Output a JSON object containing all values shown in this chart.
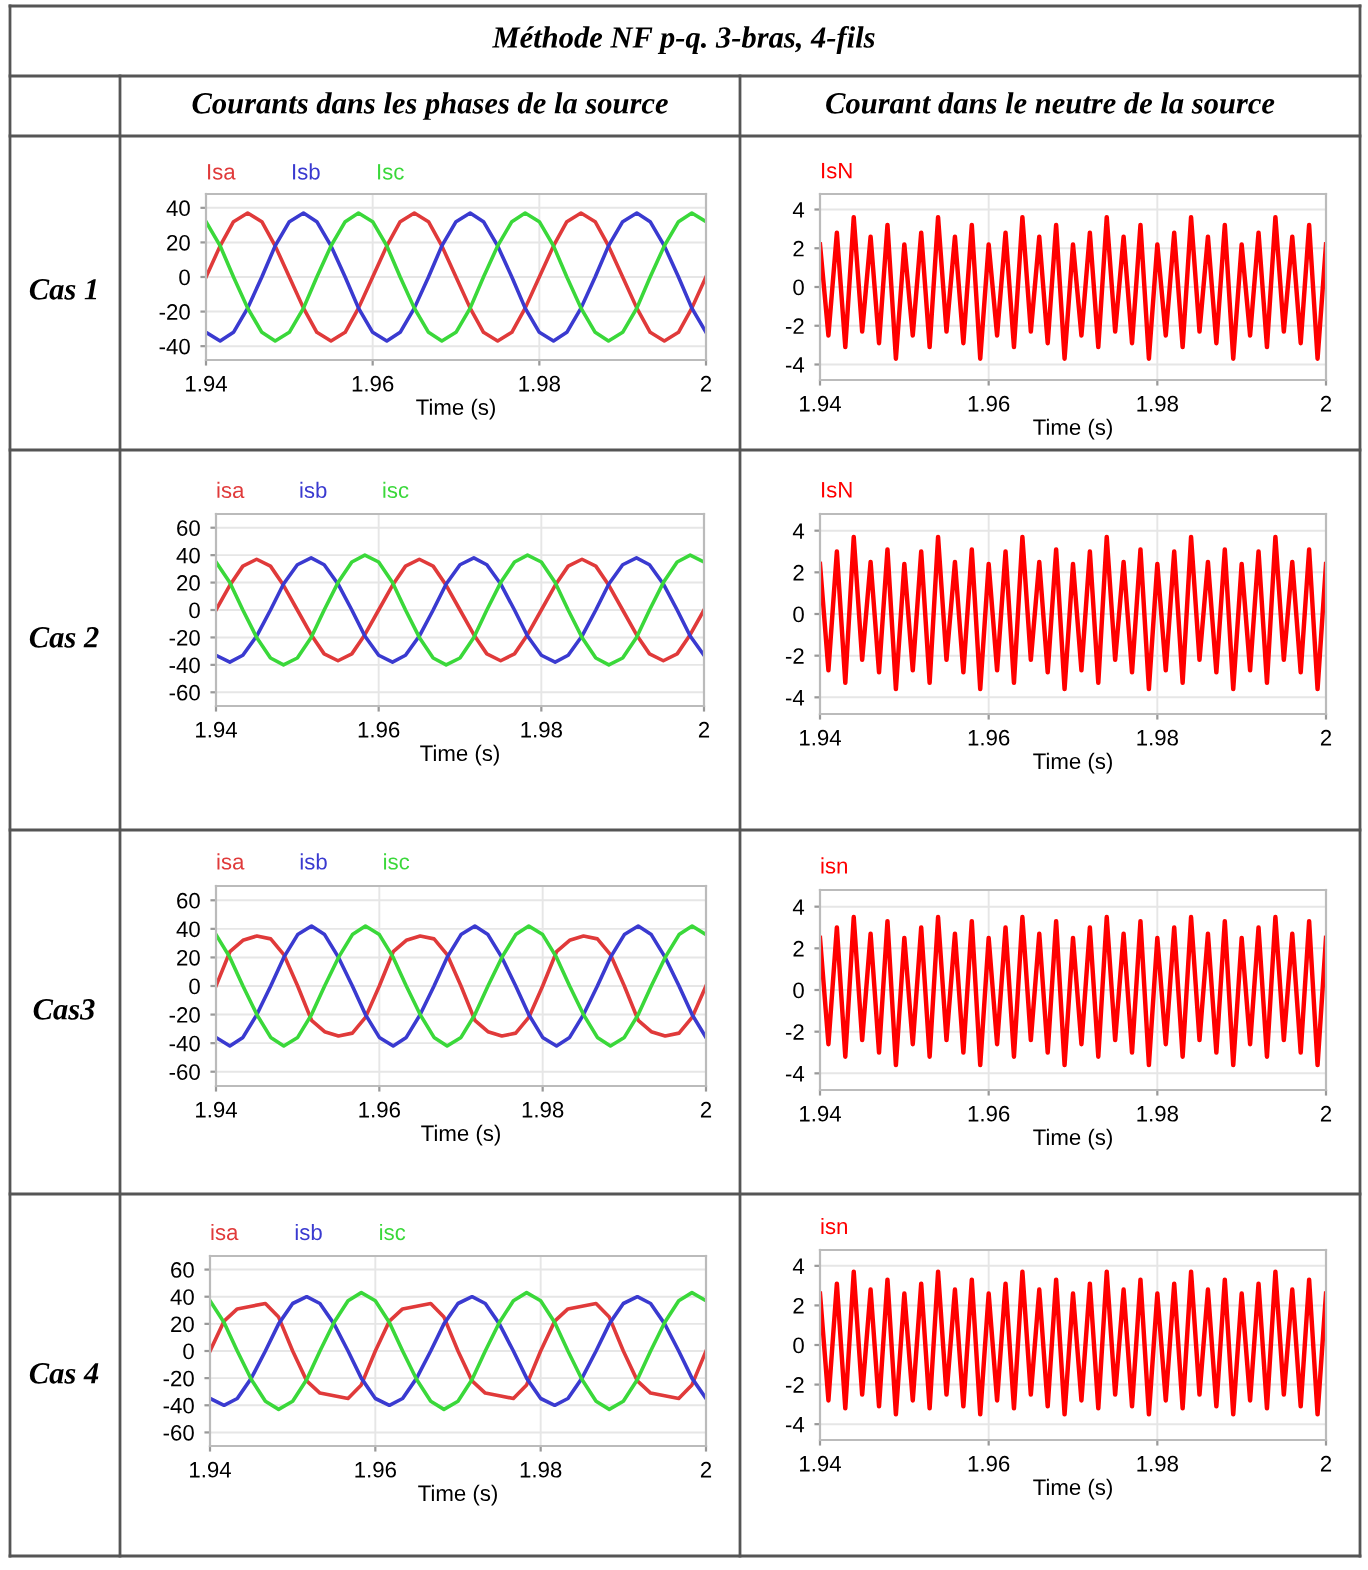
{
  "chart_data": [
    {
      "type": "line",
      "xlabel": "Time (s)",
      "xlim": [
        1.94,
        2
      ],
      "xticks": [
        1.94,
        1.96,
        1.98,
        2
      ],
      "ylim": [
        -48,
        48
      ],
      "yticks": [
        -40,
        -20,
        0,
        20,
        40
      ],
      "grid": true,
      "legend": "top",
      "line_style": "solid",
      "annotations": [
        "Méthode NF p-q. 3-bras, 4-fils",
        "Courants dans les phases de la source",
        "Cas 1"
      ],
      "x": [
        1.94,
        1.9417,
        1.9433,
        1.945,
        1.9467,
        1.9483,
        1.95,
        1.9517,
        1.9533,
        1.955,
        1.9567,
        1.9583,
        1.96,
        1.9617,
        1.9633,
        1.965,
        1.9667,
        1.9683,
        1.97,
        1.9717,
        1.9733,
        1.975,
        1.9767,
        1.9783,
        1.98,
        1.9817,
        1.9833,
        1.985,
        1.9867,
        1.9883,
        1.99,
        1.9917,
        1.9933,
        1.995,
        1.9967,
        1.9983,
        2
      ],
      "series": [
        {
          "name": "Isa",
          "color": "#e03a3a",
          "values": [
            0,
            18,
            32,
            37,
            32,
            18,
            0,
            -18,
            -32,
            -37,
            -32,
            -18,
            0,
            18,
            32,
            37,
            32,
            18,
            0,
            -18,
            -32,
            -37,
            -32,
            -18,
            0,
            18,
            32,
            37,
            32,
            18,
            0,
            -18,
            -32,
            -37,
            -32,
            -18,
            0
          ]
        },
        {
          "name": "Isb",
          "color": "#3a3ad0",
          "values": [
            -32,
            -37,
            -32,
            -18,
            0,
            18,
            32,
            37,
            32,
            18,
            0,
            -18,
            -32,
            -37,
            -32,
            -18,
            0,
            18,
            32,
            37,
            32,
            18,
            0,
            -18,
            -32,
            -37,
            -32,
            -18,
            0,
            18,
            32,
            37,
            32,
            18,
            0,
            -18,
            -32
          ]
        },
        {
          "name": "Isc",
          "color": "#3ad83a",
          "values": [
            32,
            18,
            0,
            -18,
            -32,
            -37,
            -32,
            -18,
            0,
            18,
            32,
            37,
            32,
            18,
            0,
            -18,
            -32,
            -37,
            -32,
            -18,
            0,
            18,
            32,
            37,
            32,
            18,
            0,
            -18,
            -32,
            -37,
            -32,
            -18,
            0,
            18,
            32,
            37,
            32
          ]
        }
      ]
    },
    {
      "type": "line",
      "xlabel": "Time (s)",
      "xlim": [
        1.94,
        2
      ],
      "xticks": [
        1.94,
        1.96,
        1.98,
        2
      ],
      "ylim": [
        -4.8,
        4.8
      ],
      "yticks": [
        -4,
        -2,
        0,
        2,
        4
      ],
      "grid": true,
      "legend": "top",
      "line_style": "solid",
      "annotations": [
        "Courant dans le neutre de la source"
      ],
      "x": [
        1.94,
        1.941,
        1.942,
        1.943,
        1.944,
        1.945,
        1.946,
        1.947,
        1.948,
        1.949,
        1.95,
        1.951,
        1.952,
        1.953,
        1.954,
        1.955,
        1.956,
        1.957,
        1.958,
        1.959,
        1.96,
        1.961,
        1.962,
        1.963,
        1.964,
        1.965,
        1.966,
        1.967,
        1.968,
        1.969,
        1.97,
        1.971,
        1.972,
        1.973,
        1.974,
        1.975,
        1.976,
        1.977,
        1.978,
        1.979,
        1.98,
        1.981,
        1.982,
        1.983,
        1.984,
        1.985,
        1.986,
        1.987,
        1.988,
        1.989,
        1.99,
        1.991,
        1.992,
        1.993,
        1.994,
        1.995,
        1.996,
        1.997,
        1.998,
        1.999,
        2
      ],
      "series": [
        {
          "name": "IsN",
          "color": "#ff0000",
          "values": [
            2.2,
            -2.5,
            2.8,
            -3.1,
            3.6,
            -2.3,
            2.6,
            -2.9,
            3.2,
            -3.7,
            2.2,
            -2.5,
            2.8,
            -3.1,
            3.6,
            -2.3,
            2.6,
            -2.9,
            3.2,
            -3.7,
            2.2,
            -2.5,
            2.8,
            -3.1,
            3.6,
            -2.3,
            2.6,
            -2.9,
            3.2,
            -3.7,
            2.2,
            -2.5,
            2.8,
            -3.1,
            3.6,
            -2.3,
            2.6,
            -2.9,
            3.2,
            -3.7,
            2.2,
            -2.5,
            2.8,
            -3.1,
            3.6,
            -2.3,
            2.6,
            -2.9,
            3.2,
            -3.7,
            2.2,
            -2.5,
            2.8,
            -3.1,
            3.6,
            -2.3,
            2.6,
            -2.9,
            3.2,
            -3.7,
            2.2
          ]
        }
      ]
    },
    {
      "type": "line",
      "xlabel": "Time (s)",
      "xlim": [
        1.94,
        2
      ],
      "xticks": [
        1.94,
        1.96,
        1.98,
        2
      ],
      "ylim": [
        -70,
        70
      ],
      "yticks": [
        -60,
        -40,
        -20,
        0,
        20,
        40,
        60
      ],
      "grid": true,
      "legend": "top",
      "line_style": "solid",
      "annotations": [
        "Cas 2"
      ],
      "x": [
        1.94,
        1.9417,
        1.9433,
        1.945,
        1.9467,
        1.9483,
        1.95,
        1.9517,
        1.9533,
        1.955,
        1.9567,
        1.9583,
        1.96,
        1.9617,
        1.9633,
        1.965,
        1.9667,
        1.9683,
        1.97,
        1.9717,
        1.9733,
        1.975,
        1.9767,
        1.9783,
        1.98,
        1.9817,
        1.9833,
        1.985,
        1.9867,
        1.9883,
        1.99,
        1.9917,
        1.9933,
        1.995,
        1.9967,
        1.9983,
        2
      ],
      "series": [
        {
          "name": "isa",
          "color": "#e03a3a",
          "values": [
            0,
            18,
            32,
            37,
            32,
            18,
            0,
            -18,
            -32,
            -37,
            -32,
            -18,
            0,
            18,
            32,
            37,
            32,
            18,
            0,
            -18,
            -32,
            -37,
            -32,
            -18,
            0,
            18,
            32,
            37,
            32,
            18,
            0,
            -18,
            -32,
            -37,
            -32,
            -18,
            0
          ]
        },
        {
          "name": "isb",
          "color": "#3a3ad0",
          "values": [
            -33,
            -38,
            -33,
            -19,
            0,
            19,
            33,
            38,
            33,
            19,
            0,
            -19,
            -33,
            -38,
            -33,
            -19,
            0,
            19,
            33,
            38,
            33,
            19,
            0,
            -19,
            -33,
            -38,
            -33,
            -19,
            0,
            19,
            33,
            38,
            33,
            19,
            0,
            -19,
            -33
          ]
        },
        {
          "name": "isc",
          "color": "#3ad83a",
          "values": [
            35,
            20,
            0,
            -20,
            -35,
            -40,
            -35,
            -20,
            0,
            20,
            35,
            40,
            35,
            20,
            0,
            -20,
            -35,
            -40,
            -35,
            -20,
            0,
            20,
            35,
            40,
            35,
            20,
            0,
            -20,
            -35,
            -40,
            -35,
            -20,
            0,
            20,
            35,
            40,
            35
          ]
        }
      ]
    },
    {
      "type": "line",
      "xlabel": "Time (s)",
      "xlim": [
        1.94,
        2
      ],
      "xticks": [
        1.94,
        1.96,
        1.98,
        2
      ],
      "ylim": [
        -4.8,
        4.8
      ],
      "yticks": [
        -4,
        -2,
        0,
        2,
        4
      ],
      "grid": true,
      "legend": "top",
      "line_style": "solid",
      "x": [
        1.94,
        1.941,
        1.942,
        1.943,
        1.944,
        1.945,
        1.946,
        1.947,
        1.948,
        1.949,
        1.95,
        1.951,
        1.952,
        1.953,
        1.954,
        1.955,
        1.956,
        1.957,
        1.958,
        1.959,
        1.96,
        1.961,
        1.962,
        1.963,
        1.964,
        1.965,
        1.966,
        1.967,
        1.968,
        1.969,
        1.97,
        1.971,
        1.972,
        1.973,
        1.974,
        1.975,
        1.976,
        1.977,
        1.978,
        1.979,
        1.98,
        1.981,
        1.982,
        1.983,
        1.984,
        1.985,
        1.986,
        1.987,
        1.988,
        1.989,
        1.99,
        1.991,
        1.992,
        1.993,
        1.994,
        1.995,
        1.996,
        1.997,
        1.998,
        1.999,
        2
      ],
      "series": [
        {
          "name": "IsN",
          "color": "#ff0000",
          "values": [
            2.4,
            -2.7,
            3.0,
            -3.3,
            3.7,
            -2.2,
            2.5,
            -2.8,
            3.1,
            -3.6,
            2.4,
            -2.7,
            3.0,
            -3.3,
            3.7,
            -2.2,
            2.5,
            -2.8,
            3.1,
            -3.6,
            2.4,
            -2.7,
            3.0,
            -3.3,
            3.7,
            -2.2,
            2.5,
            -2.8,
            3.1,
            -3.6,
            2.4,
            -2.7,
            3.0,
            -3.3,
            3.7,
            -2.2,
            2.5,
            -2.8,
            3.1,
            -3.6,
            2.4,
            -2.7,
            3.0,
            -3.3,
            3.7,
            -2.2,
            2.5,
            -2.8,
            3.1,
            -3.6,
            2.4,
            -2.7,
            3.0,
            -3.3,
            3.7,
            -2.2,
            2.5,
            -2.8,
            3.1,
            -3.6,
            2.4
          ]
        }
      ]
    },
    {
      "type": "line",
      "xlabel": "Time (s)",
      "xlim": [
        1.94,
        2
      ],
      "xticks": [
        1.94,
        1.96,
        1.98,
        2
      ],
      "ylim": [
        -70,
        70
      ],
      "yticks": [
        -60,
        -40,
        -20,
        0,
        20,
        40,
        60
      ],
      "grid": true,
      "legend": "top",
      "line_style": "solid",
      "annotations": [
        "Cas3"
      ],
      "x": [
        1.94,
        1.9417,
        1.9433,
        1.945,
        1.9467,
        1.9483,
        1.95,
        1.9517,
        1.9533,
        1.955,
        1.9567,
        1.9583,
        1.96,
        1.9617,
        1.9633,
        1.965,
        1.9667,
        1.9683,
        1.97,
        1.9717,
        1.9733,
        1.975,
        1.9767,
        1.9783,
        1.98,
        1.9817,
        1.9833,
        1.985,
        1.9867,
        1.9883,
        1.99,
        1.9917,
        1.9933,
        1.995,
        1.9967,
        1.9983,
        2
      ],
      "series": [
        {
          "name": "isa",
          "color": "#e03a3a",
          "values": [
            0,
            24,
            32,
            35,
            33,
            22,
            0,
            -24,
            -32,
            -35,
            -33,
            -22,
            0,
            24,
            32,
            35,
            33,
            22,
            0,
            -24,
            -32,
            -35,
            -33,
            -22,
            0,
            24,
            32,
            35,
            33,
            22,
            0,
            -24,
            -32,
            -35,
            -33,
            -22,
            0
          ]
        },
        {
          "name": "isb",
          "color": "#3a3ad0",
          "values": [
            -36,
            -42,
            -36,
            -20,
            0,
            20,
            36,
            42,
            36,
            20,
            0,
            -20,
            -36,
            -42,
            -36,
            -20,
            0,
            20,
            36,
            42,
            36,
            20,
            0,
            -20,
            -36,
            -42,
            -36,
            -20,
            0,
            20,
            36,
            42,
            36,
            20,
            0,
            -20,
            -36
          ]
        },
        {
          "name": "isc",
          "color": "#3ad83a",
          "values": [
            36,
            20,
            0,
            -20,
            -36,
            -42,
            -36,
            -20,
            0,
            20,
            36,
            42,
            36,
            20,
            0,
            -20,
            -36,
            -42,
            -36,
            -20,
            0,
            20,
            36,
            42,
            36,
            20,
            0,
            -20,
            -36,
            -42,
            -36,
            -20,
            0,
            20,
            36,
            42,
            36
          ]
        }
      ]
    },
    {
      "type": "line",
      "xlabel": "Time (s)",
      "xlim": [
        1.94,
        2
      ],
      "xticks": [
        1.94,
        1.96,
        1.98,
        2
      ],
      "ylim": [
        -4.8,
        4.8
      ],
      "yticks": [
        -4,
        -2,
        0,
        2,
        4
      ],
      "grid": true,
      "legend": "top",
      "line_style": "solid",
      "x": [
        1.94,
        1.941,
        1.942,
        1.943,
        1.944,
        1.945,
        1.946,
        1.947,
        1.948,
        1.949,
        1.95,
        1.951,
        1.952,
        1.953,
        1.954,
        1.955,
        1.956,
        1.957,
        1.958,
        1.959,
        1.96,
        1.961,
        1.962,
        1.963,
        1.964,
        1.965,
        1.966,
        1.967,
        1.968,
        1.969,
        1.97,
        1.971,
        1.972,
        1.973,
        1.974,
        1.975,
        1.976,
        1.977,
        1.978,
        1.979,
        1.98,
        1.981,
        1.982,
        1.983,
        1.984,
        1.985,
        1.986,
        1.987,
        1.988,
        1.989,
        1.99,
        1.991,
        1.992,
        1.993,
        1.994,
        1.995,
        1.996,
        1.997,
        1.998,
        1.999,
        2
      ],
      "series": [
        {
          "name": "isn",
          "color": "#ff0000",
          "values": [
            2.5,
            -2.6,
            3.0,
            -3.2,
            3.5,
            -2.4,
            2.7,
            -3.0,
            3.3,
            -3.6,
            2.5,
            -2.6,
            3.0,
            -3.2,
            3.5,
            -2.4,
            2.7,
            -3.0,
            3.3,
            -3.6,
            2.5,
            -2.6,
            3.0,
            -3.2,
            3.5,
            -2.4,
            2.7,
            -3.0,
            3.3,
            -3.6,
            2.5,
            -2.6,
            3.0,
            -3.2,
            3.5,
            -2.4,
            2.7,
            -3.0,
            3.3,
            -3.6,
            2.5,
            -2.6,
            3.0,
            -3.2,
            3.5,
            -2.4,
            2.7,
            -3.0,
            3.3,
            -3.6,
            2.5,
            -2.6,
            3.0,
            -3.2,
            3.5,
            -2.4,
            2.7,
            -3.0,
            3.3,
            -3.6,
            2.5
          ]
        }
      ]
    },
    {
      "type": "line",
      "xlabel": "Time (s)",
      "xlim": [
        1.94,
        2
      ],
      "xticks": [
        1.94,
        1.96,
        1.98,
        2
      ],
      "ylim": [
        -70,
        70
      ],
      "yticks": [
        -60,
        -40,
        -20,
        0,
        20,
        40,
        60
      ],
      "grid": true,
      "legend": "top",
      "line_style": "solid",
      "annotations": [
        "Cas 4"
      ],
      "x": [
        1.94,
        1.9417,
        1.9433,
        1.945,
        1.9467,
        1.9483,
        1.95,
        1.9517,
        1.9533,
        1.955,
        1.9567,
        1.9583,
        1.96,
        1.9617,
        1.9633,
        1.965,
        1.9667,
        1.9683,
        1.97,
        1.9717,
        1.9733,
        1.975,
        1.9767,
        1.9783,
        1.98,
        1.9817,
        1.9833,
        1.985,
        1.9867,
        1.9883,
        1.99,
        1.9917,
        1.9933,
        1.995,
        1.9967,
        1.9983,
        2
      ],
      "series": [
        {
          "name": "isa",
          "color": "#e03a3a",
          "values": [
            0,
            22,
            31,
            33,
            35,
            25,
            0,
            -22,
            -31,
            -33,
            -35,
            -25,
            0,
            22,
            31,
            33,
            35,
            25,
            0,
            -22,
            -31,
            -33,
            -35,
            -25,
            0,
            22,
            31,
            33,
            35,
            25,
            0,
            -22,
            -31,
            -33,
            -35,
            -25,
            0
          ]
        },
        {
          "name": "isb",
          "color": "#3a3ad0",
          "values": [
            -35,
            -40,
            -35,
            -20,
            0,
            20,
            35,
            40,
            35,
            20,
            0,
            -20,
            -35,
            -40,
            -35,
            -20,
            0,
            20,
            35,
            40,
            35,
            20,
            0,
            -20,
            -35,
            -40,
            -35,
            -20,
            0,
            20,
            35,
            40,
            35,
            20,
            0,
            -20,
            -35
          ]
        },
        {
          "name": "isc",
          "color": "#3ad83a",
          "values": [
            37,
            21,
            0,
            -21,
            -37,
            -43,
            -37,
            -21,
            0,
            21,
            37,
            43,
            37,
            21,
            0,
            -21,
            -37,
            -43,
            -37,
            -21,
            0,
            21,
            37,
            43,
            37,
            21,
            0,
            -21,
            -37,
            -43,
            -37,
            -21,
            0,
            21,
            37,
            43,
            37
          ]
        }
      ]
    },
    {
      "type": "line",
      "xlabel": "Time (s)",
      "xlim": [
        1.94,
        2
      ],
      "xticks": [
        1.94,
        1.96,
        1.98,
        2
      ],
      "ylim": [
        -4.8,
        4.8
      ],
      "yticks": [
        -4,
        -2,
        0,
        2,
        4
      ],
      "grid": true,
      "legend": "top",
      "line_style": "solid",
      "x": [
        1.94,
        1.941,
        1.942,
        1.943,
        1.944,
        1.945,
        1.946,
        1.947,
        1.948,
        1.949,
        1.95,
        1.951,
        1.952,
        1.953,
        1.954,
        1.955,
        1.956,
        1.957,
        1.958,
        1.959,
        1.96,
        1.961,
        1.962,
        1.963,
        1.964,
        1.965,
        1.966,
        1.967,
        1.968,
        1.969,
        1.97,
        1.971,
        1.972,
        1.973,
        1.974,
        1.975,
        1.976,
        1.977,
        1.978,
        1.979,
        1.98,
        1.981,
        1.982,
        1.983,
        1.984,
        1.985,
        1.986,
        1.987,
        1.988,
        1.989,
        1.99,
        1.991,
        1.992,
        1.993,
        1.994,
        1.995,
        1.996,
        1.997,
        1.998,
        1.999,
        2
      ],
      "series": [
        {
          "name": "isn",
          "color": "#ff0000",
          "values": [
            2.6,
            -2.8,
            3.1,
            -3.2,
            3.7,
            -2.5,
            2.8,
            -3.1,
            3.3,
            -3.5,
            2.6,
            -2.8,
            3.1,
            -3.2,
            3.7,
            -2.5,
            2.8,
            -3.1,
            3.3,
            -3.5,
            2.6,
            -2.8,
            3.1,
            -3.2,
            3.7,
            -2.5,
            2.8,
            -3.1,
            3.3,
            -3.5,
            2.6,
            -2.8,
            3.1,
            -3.2,
            3.7,
            -2.5,
            2.8,
            -3.1,
            3.3,
            -3.5,
            2.6,
            -2.8,
            3.1,
            -3.2,
            3.7,
            -2.5,
            2.8,
            -3.1,
            3.3,
            -3.5,
            2.6,
            -2.8,
            3.1,
            -3.2,
            3.7,
            -2.5,
            2.8,
            -3.1,
            3.3,
            -3.5,
            2.6
          ]
        }
      ]
    }
  ]
}
